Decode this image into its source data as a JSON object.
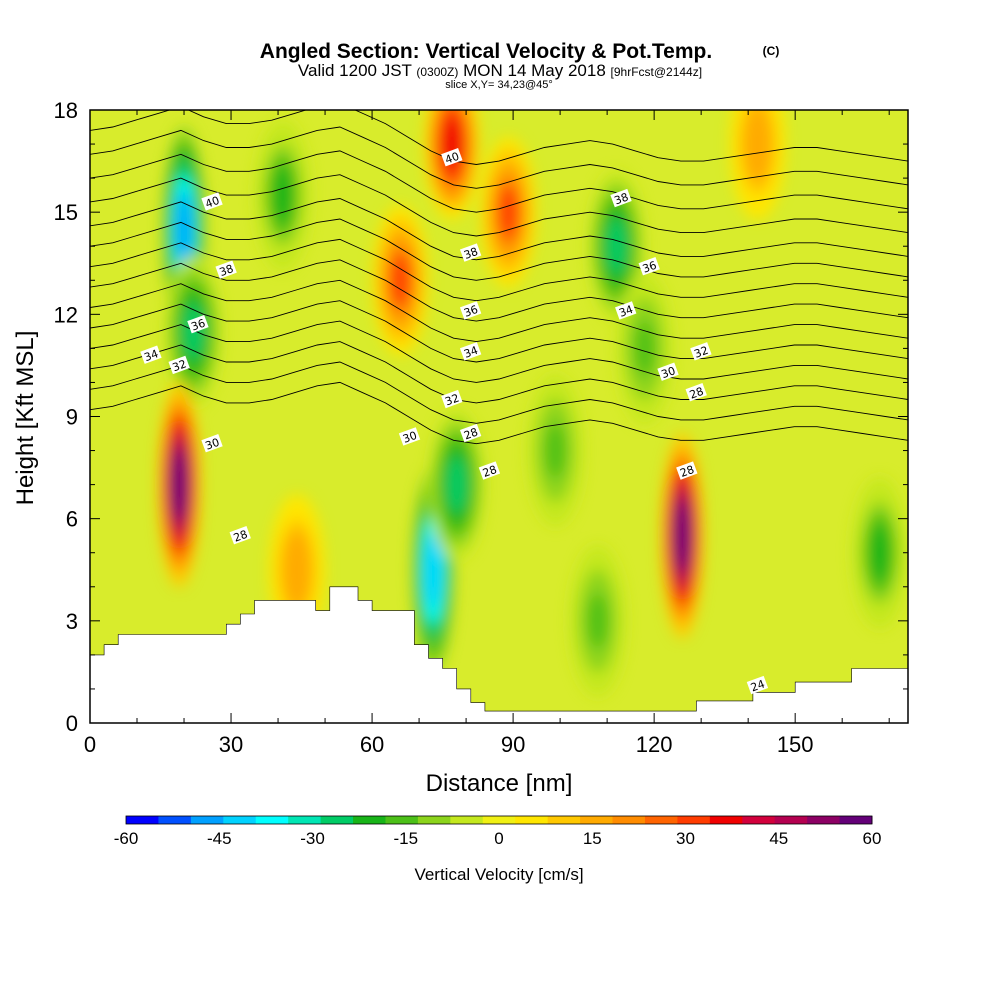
{
  "chart_data": {
    "type": "heatmap",
    "title": "Angled Section: Vertical Velocity & Pot.Temp.",
    "title_suffix": "(C)",
    "subtitle": {
      "prefix": "Valid 1200 JST ",
      "zone": "(0300Z)",
      "mid": " MON 14 May 2018 ",
      "forecast": "[9hrFcst@2144z]"
    },
    "slice_label": "slice X,Y= 34,23@45°",
    "xlabel": "Distance [nm]",
    "ylabel": "Height [Kft MSL]",
    "xlim": [
      0,
      174
    ],
    "ylim": [
      0,
      18
    ],
    "x_ticks": [
      0,
      30,
      60,
      90,
      120,
      150
    ],
    "y_ticks": [
      0,
      3,
      6,
      9,
      12,
      15,
      18
    ],
    "colorbar": {
      "label": "Vertical Velocity [cm/s]",
      "range": [
        -60,
        60
      ],
      "ticks": [
        -60,
        -45,
        -30,
        -15,
        0,
        15,
        30,
        45,
        60
      ],
      "colors": [
        "#0000ff",
        "#0050ff",
        "#00a0ff",
        "#00d2ff",
        "#00ffff",
        "#00e6b4",
        "#00cc66",
        "#18b418",
        "#4cc018",
        "#8cd41c",
        "#c4e81e",
        "#f0f014",
        "#ffe600",
        "#ffc800",
        "#ffaa00",
        "#ff8c00",
        "#ff6400",
        "#ff3c00",
        "#f00000",
        "#d2003c",
        "#b40050",
        "#8c0064",
        "#640078"
      ]
    },
    "velocity_features": [
      {
        "kind": "downdraft",
        "x": 20,
        "z": 14.5,
        "peak": -50
      },
      {
        "kind": "downdraft",
        "x": 22,
        "z": 11.5,
        "peak": -30
      },
      {
        "kind": "updraft",
        "x": 19,
        "z": 7.0,
        "peak": 60
      },
      {
        "kind": "updraft",
        "x": 77,
        "z": 17.0,
        "peak": 40
      },
      {
        "kind": "updraft",
        "x": 89,
        "z": 15.0,
        "peak": 30
      },
      {
        "kind": "updraft",
        "x": 66,
        "z": 13.0,
        "peak": 30
      },
      {
        "kind": "downdraft",
        "x": 73,
        "z": 4.5,
        "peak": -45
      },
      {
        "kind": "downdraft",
        "x": 78,
        "z": 7.0,
        "peak": -25
      },
      {
        "kind": "updraft",
        "x": 126,
        "z": 5.5,
        "peak": 60
      },
      {
        "kind": "downdraft",
        "x": 112,
        "z": 14.0,
        "peak": -25
      },
      {
        "kind": "downdraft",
        "x": 118,
        "z": 11.0,
        "peak": -15
      },
      {
        "kind": "downdraft",
        "x": 41,
        "z": 15.5,
        "peak": -20
      },
      {
        "kind": "downdraft",
        "x": 99,
        "z": 8.0,
        "peak": -15
      },
      {
        "kind": "downdraft",
        "x": 108,
        "z": 3.0,
        "peak": -15
      },
      {
        "kind": "downdraft",
        "x": 168,
        "z": 5.0,
        "peak": -20
      },
      {
        "kind": "updraft",
        "x": 44,
        "z": 4.5,
        "peak": 18
      },
      {
        "kind": "updraft",
        "x": 142,
        "z": 17.0,
        "peak": 18
      }
    ],
    "terrain": [
      [
        0,
        2.0
      ],
      [
        3,
        2.0
      ],
      [
        3,
        2.3
      ],
      [
        6,
        2.3
      ],
      [
        6,
        2.6
      ],
      [
        29,
        2.6
      ],
      [
        29,
        2.9
      ],
      [
        32,
        2.9
      ],
      [
        32,
        3.2
      ],
      [
        35,
        3.2
      ],
      [
        35,
        3.6
      ],
      [
        48,
        3.6
      ],
      [
        48,
        3.3
      ],
      [
        51,
        3.3
      ],
      [
        51,
        4.0
      ],
      [
        57,
        4.0
      ],
      [
        57,
        3.6
      ],
      [
        60,
        3.6
      ],
      [
        60,
        3.3
      ],
      [
        69,
        3.3
      ],
      [
        69,
        2.3
      ],
      [
        72,
        2.3
      ],
      [
        72,
        1.9
      ],
      [
        75,
        1.9
      ],
      [
        75,
        1.6
      ],
      [
        78,
        1.6
      ],
      [
        78,
        1.0
      ],
      [
        81,
        1.0
      ],
      [
        81,
        0.6
      ],
      [
        84,
        0.6
      ],
      [
        84,
        0.35
      ],
      [
        96,
        0.35
      ],
      [
        96,
        0.35
      ],
      [
        120,
        0.35
      ],
      [
        120,
        0.35
      ],
      [
        129,
        0.35
      ],
      [
        129,
        0.65
      ],
      [
        141,
        0.65
      ],
      [
        141,
        0.9
      ],
      [
        150,
        0.9
      ],
      [
        150,
        1.2
      ],
      [
        162,
        1.2
      ],
      [
        162,
        1.6
      ],
      [
        174,
        1.6
      ]
    ],
    "isentropes": [
      {
        "values": [
          9.2,
          9.3,
          9.5,
          9.7,
          9.9,
          9.6,
          9.4,
          9.4,
          9.5,
          9.7,
          9.9,
          10.0,
          9.7,
          9.4,
          9.0,
          8.6,
          8.3,
          8.2,
          8.3,
          8.5,
          8.7,
          8.8,
          8.9,
          8.8,
          8.6,
          8.4,
          8.3,
          8.3,
          8.4,
          8.5,
          8.6,
          8.7,
          8.7,
          8.6,
          8.5,
          8.4,
          8.3
        ]
      },
      {
        "values": [
          9.8,
          9.9,
          10.1,
          10.3,
          10.5,
          10.2,
          10.0,
          10.0,
          10.1,
          10.3,
          10.5,
          10.6,
          10.3,
          10.0,
          9.6,
          9.2,
          8.9,
          8.8,
          8.9,
          9.1,
          9.3,
          9.4,
          9.5,
          9.4,
          9.2,
          9.0,
          8.9,
          8.9,
          9.0,
          9.1,
          9.2,
          9.3,
          9.3,
          9.2,
          9.1,
          9.0,
          8.9
        ]
      },
      {
        "values": [
          10.4,
          10.5,
          10.7,
          10.9,
          11.1,
          10.8,
          10.6,
          10.6,
          10.7,
          10.9,
          11.1,
          11.2,
          10.9,
          10.6,
          10.2,
          9.8,
          9.5,
          9.4,
          9.5,
          9.7,
          9.9,
          10.0,
          10.1,
          10.0,
          9.8,
          9.6,
          9.5,
          9.5,
          9.6,
          9.7,
          9.8,
          9.9,
          9.9,
          9.8,
          9.7,
          9.6,
          9.5
        ]
      },
      {
        "values": [
          11.0,
          11.1,
          11.3,
          11.5,
          11.7,
          11.4,
          11.2,
          11.2,
          11.3,
          11.5,
          11.7,
          11.8,
          11.5,
          11.2,
          10.8,
          10.4,
          10.1,
          10.0,
          10.1,
          10.3,
          10.5,
          10.6,
          10.7,
          10.6,
          10.4,
          10.2,
          10.1,
          10.1,
          10.2,
          10.3,
          10.4,
          10.5,
          10.5,
          10.4,
          10.3,
          10.2,
          10.1
        ]
      },
      {
        "values": [
          11.6,
          11.7,
          11.9,
          12.1,
          12.3,
          12.0,
          11.8,
          11.8,
          11.9,
          12.1,
          12.3,
          12.4,
          12.1,
          11.8,
          11.4,
          11.0,
          10.7,
          10.6,
          10.7,
          10.9,
          11.1,
          11.2,
          11.3,
          11.2,
          11.0,
          10.8,
          10.7,
          10.7,
          10.8,
          10.9,
          11.0,
          11.1,
          11.1,
          11.0,
          10.9,
          10.8,
          10.7
        ]
      },
      {
        "values": [
          12.2,
          12.3,
          12.5,
          12.7,
          12.9,
          12.6,
          12.4,
          12.4,
          12.5,
          12.7,
          12.9,
          13.0,
          12.7,
          12.4,
          12.0,
          11.6,
          11.3,
          11.2,
          11.3,
          11.5,
          11.7,
          11.8,
          11.9,
          11.8,
          11.6,
          11.4,
          11.3,
          11.3,
          11.4,
          11.5,
          11.6,
          11.7,
          11.7,
          11.6,
          11.5,
          11.4,
          11.3
        ]
      },
      {
        "values": [
          12.8,
          12.9,
          13.1,
          13.3,
          13.5,
          13.2,
          13.0,
          13.0,
          13.1,
          13.3,
          13.5,
          13.6,
          13.3,
          13.0,
          12.6,
          12.2,
          11.9,
          11.8,
          11.9,
          12.1,
          12.3,
          12.4,
          12.5,
          12.4,
          12.2,
          12.0,
          11.9,
          11.9,
          12.0,
          12.1,
          12.2,
          12.3,
          12.3,
          12.2,
          12.1,
          12.0,
          11.9
        ]
      },
      {
        "values": [
          13.4,
          13.5,
          13.7,
          13.9,
          14.1,
          13.8,
          13.6,
          13.6,
          13.7,
          13.9,
          14.1,
          14.2,
          13.9,
          13.6,
          13.2,
          12.8,
          12.5,
          12.4,
          12.5,
          12.7,
          12.9,
          13.0,
          13.1,
          13.0,
          12.8,
          12.6,
          12.5,
          12.5,
          12.6,
          12.7,
          12.8,
          12.9,
          12.9,
          12.8,
          12.7,
          12.6,
          12.5
        ]
      },
      {
        "values": [
          14.0,
          14.1,
          14.3,
          14.5,
          14.7,
          14.4,
          14.2,
          14.2,
          14.3,
          14.5,
          14.7,
          14.8,
          14.5,
          14.2,
          13.8,
          13.4,
          13.1,
          13.0,
          13.1,
          13.3,
          13.5,
          13.6,
          13.7,
          13.6,
          13.4,
          13.2,
          13.1,
          13.1,
          13.2,
          13.3,
          13.4,
          13.5,
          13.5,
          13.4,
          13.3,
          13.2,
          13.1
        ]
      },
      {
        "values": [
          14.6,
          14.7,
          14.9,
          15.1,
          15.3,
          15.0,
          14.8,
          14.8,
          14.9,
          15.1,
          15.3,
          15.4,
          15.1,
          14.8,
          14.4,
          14.0,
          13.7,
          13.6,
          13.7,
          13.9,
          14.1,
          14.2,
          14.3,
          14.2,
          14.0,
          13.8,
          13.7,
          13.7,
          13.8,
          13.9,
          14.0,
          14.1,
          14.1,
          14.0,
          13.9,
          13.8,
          13.7
        ]
      },
      {
        "values": [
          15.3,
          15.4,
          15.6,
          15.8,
          16.0,
          15.7,
          15.5,
          15.5,
          15.6,
          15.8,
          16.0,
          16.1,
          15.8,
          15.5,
          15.1,
          14.7,
          14.4,
          14.3,
          14.4,
          14.6,
          14.8,
          14.9,
          15.0,
          14.9,
          14.7,
          14.5,
          14.4,
          14.4,
          14.5,
          14.6,
          14.7,
          14.8,
          14.8,
          14.7,
          14.6,
          14.5,
          14.4
        ]
      },
      {
        "values": [
          16.0,
          16.1,
          16.3,
          16.5,
          16.7,
          16.4,
          16.2,
          16.2,
          16.3,
          16.5,
          16.7,
          16.8,
          16.5,
          16.2,
          15.8,
          15.4,
          15.1,
          15.0,
          15.1,
          15.3,
          15.5,
          15.6,
          15.7,
          15.6,
          15.4,
          15.2,
          15.1,
          15.1,
          15.2,
          15.3,
          15.4,
          15.5,
          15.5,
          15.4,
          15.3,
          15.2,
          15.1
        ]
      },
      {
        "values": [
          16.7,
          16.8,
          17.0,
          17.2,
          17.4,
          17.1,
          16.9,
          16.9,
          17.0,
          17.2,
          17.4,
          17.5,
          17.2,
          16.9,
          16.5,
          16.1,
          15.8,
          15.7,
          15.8,
          16.0,
          16.2,
          16.3,
          16.4,
          16.3,
          16.1,
          15.9,
          15.8,
          15.8,
          15.9,
          16.0,
          16.1,
          16.2,
          16.2,
          16.1,
          16.0,
          15.9,
          15.8
        ]
      },
      {
        "values": [
          17.4,
          17.5,
          17.7,
          17.9,
          18.1,
          17.8,
          17.6,
          17.6,
          17.7,
          17.9,
          18.1,
          18.2,
          17.9,
          17.6,
          17.2,
          16.8,
          16.5,
          16.4,
          16.5,
          16.7,
          16.9,
          17.0,
          17.1,
          17.0,
          16.8,
          16.6,
          16.5,
          16.5,
          16.6,
          16.7,
          16.8,
          16.9,
          16.9,
          16.8,
          16.7,
          16.6,
          16.5
        ]
      }
    ],
    "contour_labels": [
      {
        "text": "40",
        "x": 77,
        "z": 16.6
      },
      {
        "text": "40",
        "x": 26,
        "z": 15.3
      },
      {
        "text": "38",
        "x": 113,
        "z": 15.4
      },
      {
        "text": "38",
        "x": 81,
        "z": 13.8
      },
      {
        "text": "38",
        "x": 29,
        "z": 13.3
      },
      {
        "text": "36",
        "x": 119,
        "z": 13.4
      },
      {
        "text": "36",
        "x": 81,
        "z": 12.1
      },
      {
        "text": "36",
        "x": 23,
        "z": 11.7
      },
      {
        "text": "34",
        "x": 114,
        "z": 12.1
      },
      {
        "text": "34",
        "x": 81,
        "z": 10.9
      },
      {
        "text": "34",
        "x": 13,
        "z": 10.8
      },
      {
        "text": "32",
        "x": 130,
        "z": 10.9
      },
      {
        "text": "32",
        "x": 77,
        "z": 9.5
      },
      {
        "text": "32",
        "x": 19,
        "z": 10.5
      },
      {
        "text": "30",
        "x": 123,
        "z": 10.3
      },
      {
        "text": "30",
        "x": 68,
        "z": 8.4
      },
      {
        "text": "30",
        "x": 26,
        "z": 8.2
      },
      {
        "text": "28",
        "x": 129,
        "z": 9.7
      },
      {
        "text": "28",
        "x": 81,
        "z": 8.5
      },
      {
        "text": "28",
        "x": 85,
        "z": 7.4
      },
      {
        "text": "28",
        "x": 127,
        "z": 7.4
      },
      {
        "text": "28",
        "x": 32,
        "z": 5.5
      },
      {
        "text": "24",
        "x": 142,
        "z": 1.1
      }
    ]
  }
}
